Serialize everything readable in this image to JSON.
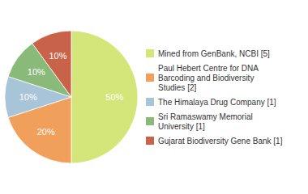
{
  "chart_data": {
    "type": "pie",
    "categories": [
      "Mined from GenBank, NCBI [5]",
      "Paul Hebert Centre for DNA\nBarcoding and Biodiversity\nStudies [2]",
      "The Himalaya Drug Company [1]",
      "Sri Ramaswamy Memorial\nUniversity [1]",
      "Gujarat Biodiversity Gene Bank [1]"
    ],
    "values": [
      50,
      20,
      10,
      10,
      10
    ],
    "value_labels": [
      "50%",
      "20%",
      "10%",
      "10%",
      "10%"
    ],
    "colors": [
      "#d4e57a",
      "#f0a05a",
      "#a8c4d8",
      "#8aba7a",
      "#c8634a"
    ],
    "data_labels": true,
    "legend": "right"
  }
}
